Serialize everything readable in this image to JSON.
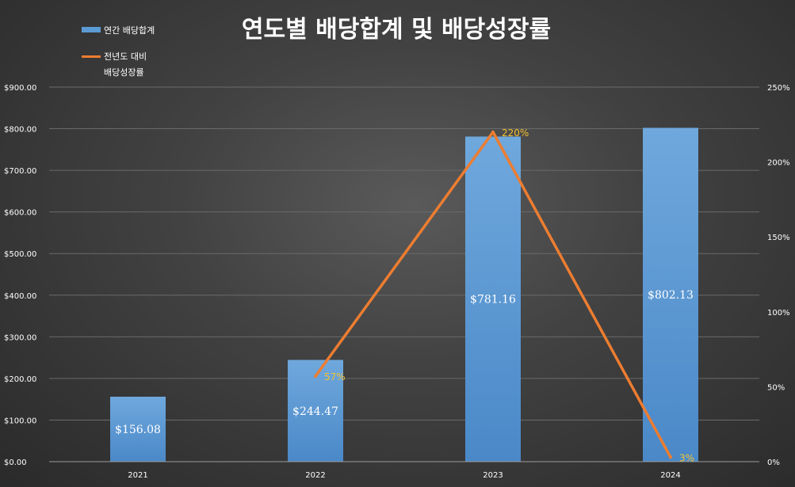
{
  "chart_data": {
    "type": "bar",
    "title": "연도별 배당합계 및 배당성장률",
    "categories": [
      "2021",
      "2022",
      "2023",
      "2024"
    ],
    "series": [
      {
        "name": "연간 배당합계",
        "type": "bar",
        "axis": "left",
        "values": [
          156.08,
          244.47,
          781.16,
          802.13
        ],
        "labels": [
          "$156.08",
          "$244.47",
          "$781.16",
          "$802.13"
        ],
        "color": "#5b9bd5"
      },
      {
        "name": "전년도 대비 배당성장률",
        "name_lines": [
          "전년도 대비",
          "배당성장률"
        ],
        "type": "line",
        "axis": "right",
        "values": [
          null,
          57,
          220,
          3
        ],
        "labels": [
          "",
          "57%",
          "220%",
          "3%"
        ],
        "color": "#ed7d31"
      }
    ],
    "y_left": {
      "lim": [
        0,
        900
      ],
      "ticks": [
        0,
        100,
        200,
        300,
        400,
        500,
        600,
        700,
        800,
        900
      ],
      "tick_labels": [
        "$0.00",
        "$100.00",
        "$200.00",
        "$300.00",
        "$400.00",
        "$500.00",
        "$600.00",
        "$700.00",
        "$800.00",
        "$900.00"
      ]
    },
    "y_right": {
      "lim": [
        0,
        250
      ],
      "ticks": [
        0,
        50,
        100,
        150,
        200,
        250
      ],
      "tick_labels": [
        "0%",
        "50%",
        "100%",
        "150%",
        "200%",
        "250%"
      ]
    },
    "grid": true,
    "legend": "top-left",
    "label_color": "#f2c230"
  }
}
